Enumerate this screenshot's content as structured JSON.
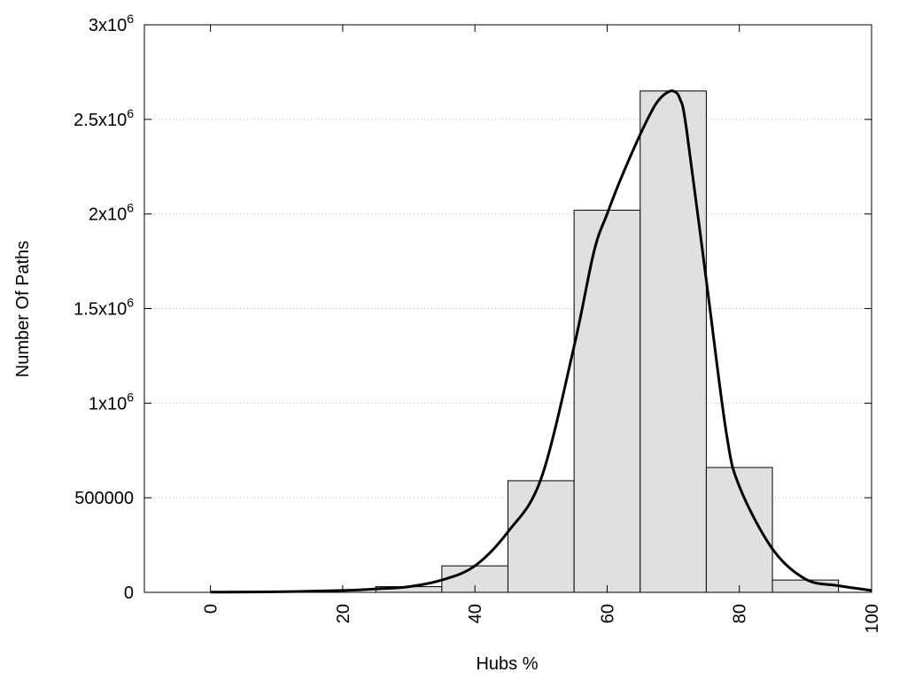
{
  "chart_data": {
    "type": "bar",
    "xlabel": "Hubs %",
    "ylabel": "Number Of Paths",
    "xlim": [
      -10,
      100
    ],
    "ylim": [
      0,
      3000000
    ],
    "bins": [
      {
        "x0": 25,
        "x1": 35,
        "value": 30000
      },
      {
        "x0": 35,
        "x1": 45,
        "value": 140000
      },
      {
        "x0": 45,
        "x1": 55,
        "value": 590000
      },
      {
        "x0": 55,
        "x1": 65,
        "value": 2020000
      },
      {
        "x0": 65,
        "x1": 75,
        "value": 2650000
      },
      {
        "x0": 75,
        "x1": 85,
        "value": 660000
      },
      {
        "x0": 85,
        "x1": 95,
        "value": 65000
      }
    ],
    "curve": {
      "x": [
        0,
        10,
        20,
        25,
        30,
        35,
        40,
        45,
        50,
        55,
        58,
        60,
        62,
        65,
        67,
        68,
        69,
        70,
        71,
        72,
        75,
        78,
        80,
        85,
        90,
        95,
        100
      ],
      "y": [
        1000,
        3000,
        10000,
        18000,
        30000,
        65000,
        140000,
        320000,
        600000,
        1300000,
        1800000,
        2000000,
        2180000,
        2420000,
        2560000,
        2610000,
        2640000,
        2650000,
        2610000,
        2450000,
        1650000,
        850000,
        560000,
        230000,
        70000,
        35000,
        10000
      ]
    },
    "xticks": [
      {
        "value": 0,
        "label": "0"
      },
      {
        "value": 20,
        "label": "20"
      },
      {
        "value": 40,
        "label": "40"
      },
      {
        "value": 60,
        "label": "60"
      },
      {
        "value": 80,
        "label": "80"
      },
      {
        "value": 100,
        "label": "100"
      }
    ],
    "yticks": [
      {
        "value": 0,
        "base": "0",
        "exp": ""
      },
      {
        "value": 500000,
        "base": "500000",
        "exp": ""
      },
      {
        "value": 1000000,
        "base": "1x10",
        "exp": "6"
      },
      {
        "value": 1500000,
        "base": "1.5x10",
        "exp": "6"
      },
      {
        "value": 2000000,
        "base": "2x10",
        "exp": "6"
      },
      {
        "value": 2500000,
        "base": "2.5x10",
        "exp": "6"
      },
      {
        "value": 3000000,
        "base": "3x10",
        "exp": "6"
      }
    ],
    "grid": "horizontal-dotted",
    "bar_color": "#e0e0e0",
    "line_color": "#000000"
  }
}
